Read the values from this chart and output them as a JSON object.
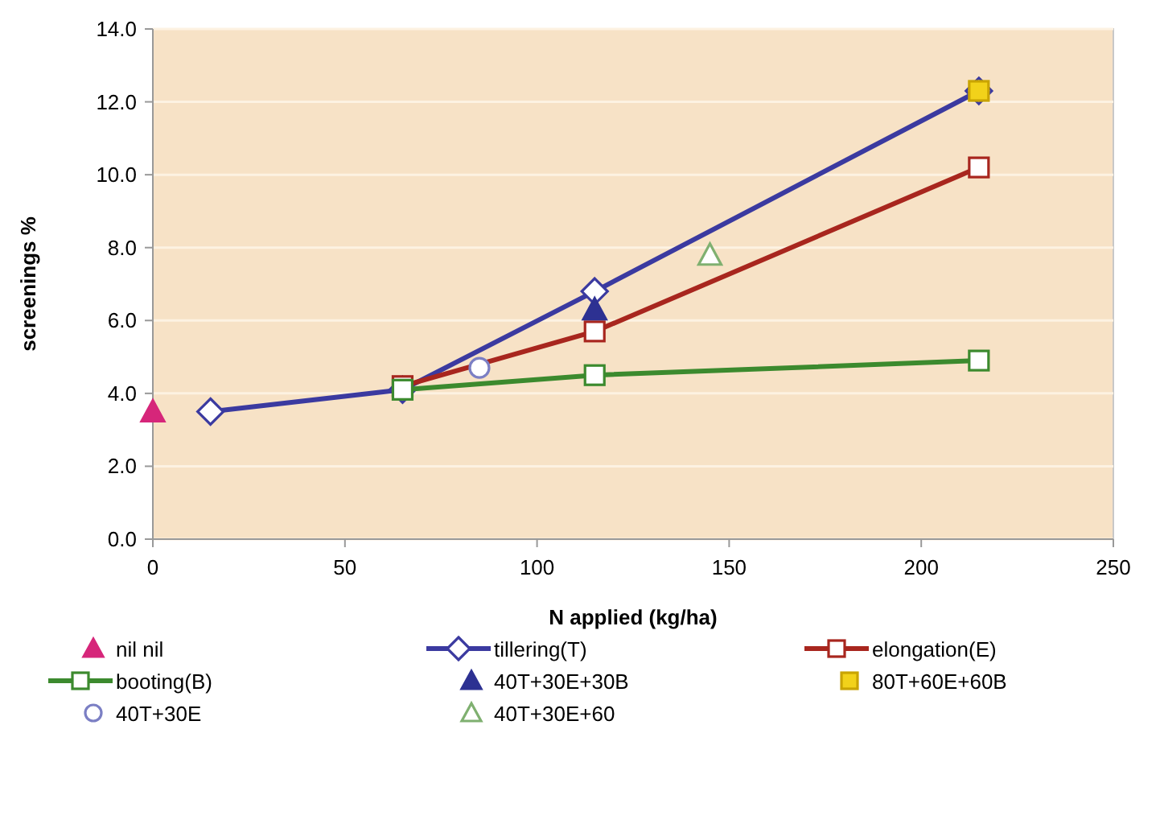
{
  "chart_data": {
    "type": "line",
    "xlabel": "N applied (kg/ha)",
    "ylabel": "screenings %",
    "xlim": [
      0,
      250
    ],
    "xticks": [
      0,
      50,
      100,
      150,
      200,
      250
    ],
    "ylim": [
      0,
      14
    ],
    "yticks": [
      {
        "value": 0,
        "label": "0.0"
      },
      {
        "value": 2,
        "label": "2.0"
      },
      {
        "value": 4,
        "label": "4.0"
      },
      {
        "value": 6,
        "label": "6.0"
      },
      {
        "value": 8,
        "label": "8.0"
      },
      {
        "value": 10,
        "label": "10.0"
      },
      {
        "value": 12,
        "label": "12.0"
      },
      {
        "value": 14,
        "label": "14.0"
      }
    ],
    "grid": "y",
    "legend": "bottom",
    "series": [
      {
        "name": "nil nil",
        "type": "scatter",
        "marker": "triangle",
        "color": "#d6267a",
        "x": [
          0
        ],
        "values": [
          3.5
        ]
      },
      {
        "name": "tillering(T)",
        "type": "line",
        "marker": "diamond",
        "color": "#3b3aa0",
        "x": [
          15,
          65,
          115,
          215
        ],
        "values": [
          3.5,
          4.1,
          6.8,
          12.3
        ]
      },
      {
        "name": "elongation(E)",
        "type": "line",
        "marker": "square",
        "color": "#a8261e",
        "x": [
          65,
          115,
          215
        ],
        "values": [
          4.2,
          5.7,
          10.2
        ]
      },
      {
        "name": "booting(B)",
        "type": "line",
        "marker": "square",
        "color": "#3c8a2e",
        "x": [
          65,
          115,
          215
        ],
        "values": [
          4.1,
          4.5,
          4.9
        ]
      },
      {
        "name": "40T+30E+30B",
        "type": "scatter",
        "marker": "triangle",
        "color": "#2d3192",
        "x": [
          115
        ],
        "values": [
          6.3
        ]
      },
      {
        "name": "80T+60E+60B",
        "type": "scatter",
        "marker": "square",
        "color": "#f2d21a",
        "x": [
          215
        ],
        "values": [
          12.3
        ]
      },
      {
        "name": "40T+30E",
        "type": "scatter",
        "marker": "circle",
        "color": "#7b7fc4",
        "x": [
          85
        ],
        "values": [
          4.7
        ]
      },
      {
        "name": "40T+30E+60",
        "type": "scatter",
        "marker": "triangle",
        "color": "#7fb070",
        "x": [
          145
        ],
        "values": [
          7.8
        ]
      }
    ]
  }
}
